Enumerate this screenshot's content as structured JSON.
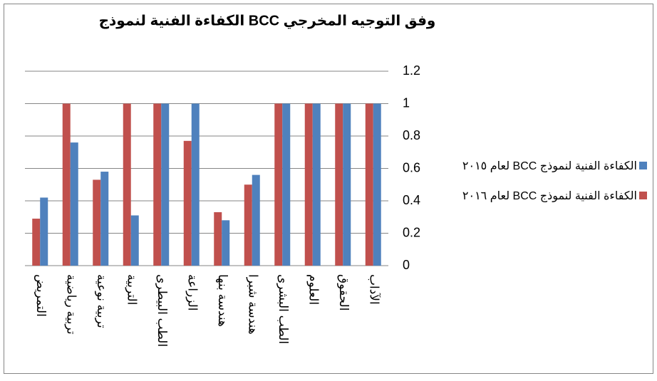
{
  "chart_data": {
    "type": "bar",
    "title": "الكفاءة الفنية لنموذج BCC وفق التوجيه المخرجي",
    "categories": [
      "التمريض",
      "تربية رياضية",
      "تربية نوعية",
      "التربية",
      "الطب البيطرى",
      "الزراعة",
      "هندسة بنها",
      "هندسة شبرا",
      "الطب البشرى",
      "العلوم",
      "الحقوق",
      "الآداب"
    ],
    "series": [
      {
        "name": "الكفاءة الفنية لنموذج BCC لعام ٢٠١٥",
        "color": "#4f81bd",
        "values": [
          0.42,
          0.76,
          0.58,
          0.31,
          1,
          1,
          0.28,
          0.56,
          1,
          1,
          1,
          1
        ]
      },
      {
        "name": "الكفاءة الفنية لنموذج BCC لعام ٢٠١٦",
        "color": "#c0504d",
        "values": [
          0.29,
          1,
          0.53,
          1,
          1,
          0.77,
          0.33,
          0.5,
          1,
          1,
          1,
          1
        ]
      }
    ],
    "ylim": [
      0,
      1.2
    ],
    "yticks": [
      0,
      0.2,
      0.4,
      0.6,
      0.8,
      1,
      1.2
    ],
    "grid": true,
    "legend": "right",
    "yaxis_side": "right"
  }
}
